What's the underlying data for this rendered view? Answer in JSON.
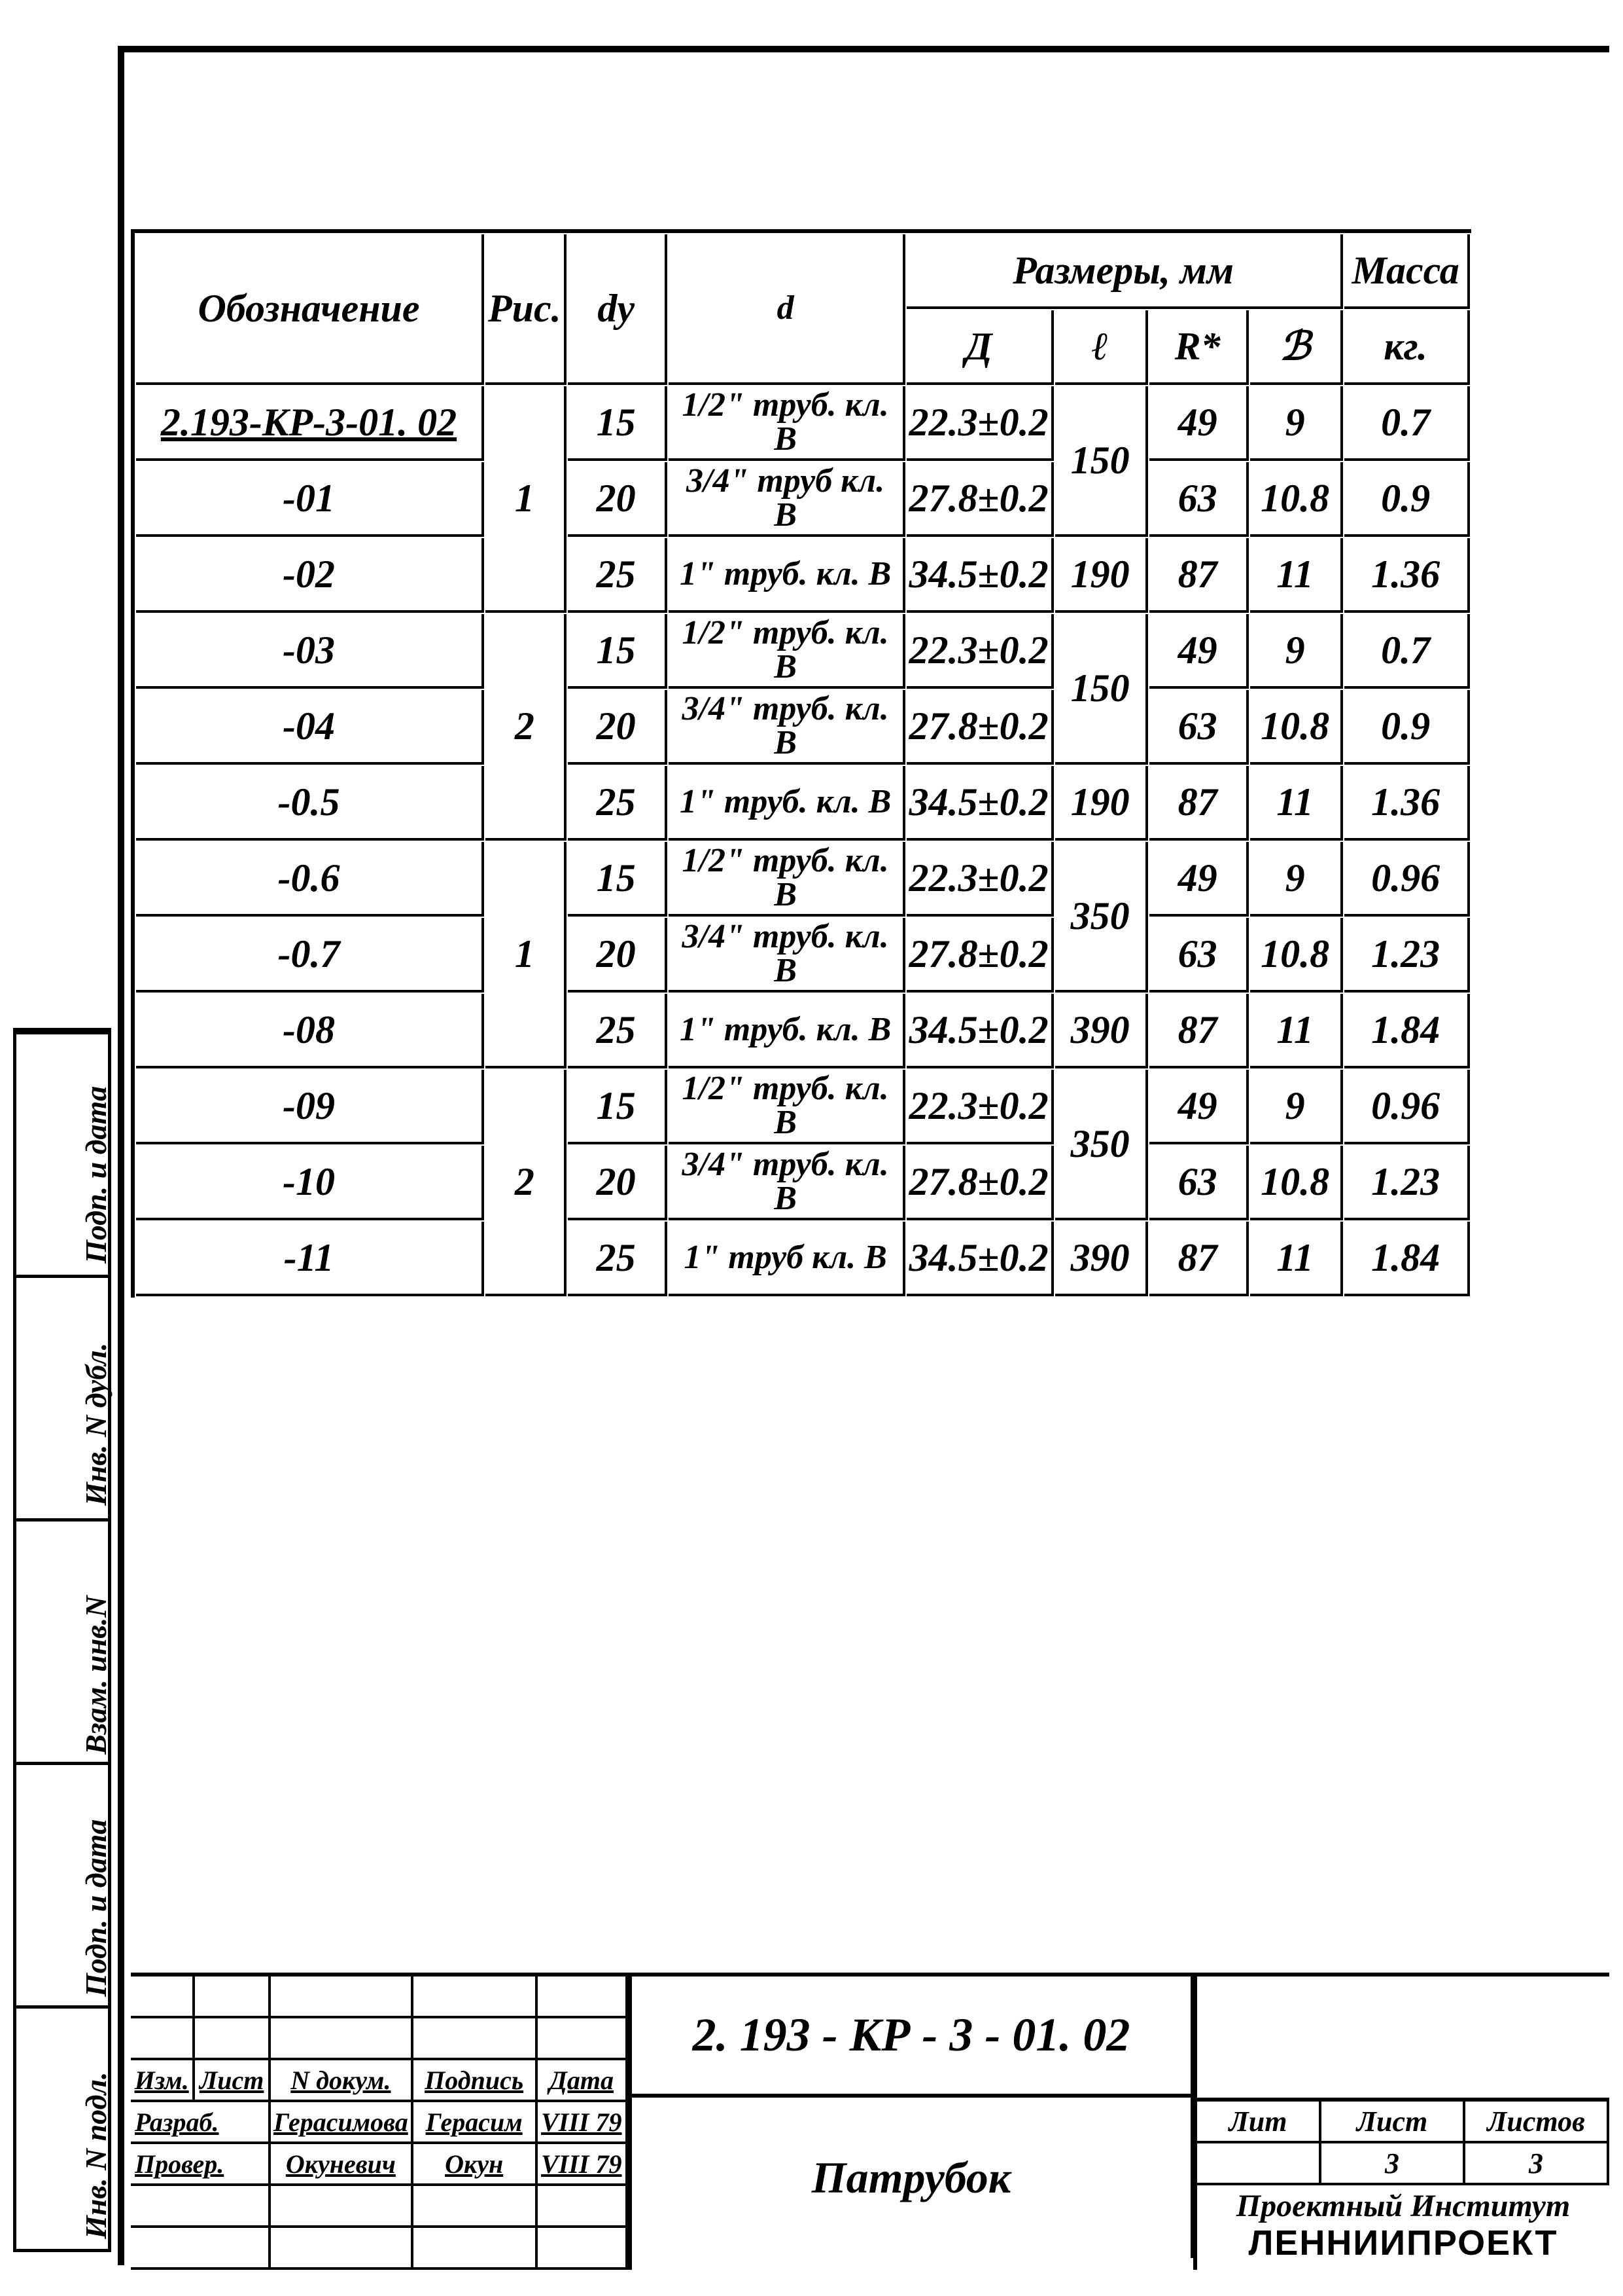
{
  "table": {
    "headers": {
      "oboz": "Обозначение",
      "ris": "Рис.",
      "dy": "dу",
      "d": "d",
      "razmery": "Размеры,   мм",
      "D": "Д",
      "l": "ℓ",
      "R": "R*",
      "b": "ℬ",
      "massa": "Масса",
      "massa_unit": "кг."
    },
    "rows": [
      {
        "oboz": "2.193-КР-3-01. 02",
        "ris": "",
        "dy": "15",
        "d": "1/2\" труб. кл. В",
        "D": "22.3±0.2",
        "l": "",
        "R": "49",
        "b": "9",
        "m": "0.7"
      },
      {
        "oboz": "-01",
        "ris": "1",
        "dy": "20",
        "d": "3/4\" труб кл. В",
        "D": "27.8±0.2",
        "l": "150",
        "R": "63",
        "b": "10.8",
        "m": "0.9"
      },
      {
        "oboz": "-02",
        "ris": "",
        "dy": "25",
        "d": "1\" труб. кл. В",
        "D": "34.5±0.2",
        "l": "190",
        "R": "87",
        "b": "11",
        "m": "1.36"
      },
      {
        "oboz": "-03",
        "ris": "",
        "dy": "15",
        "d": "1/2\" труб. кл. В",
        "D": "22.3±0.2",
        "l": "",
        "R": "49",
        "b": "9",
        "m": "0.7"
      },
      {
        "oboz": "-04",
        "ris": "2",
        "dy": "20",
        "d": "3/4\" труб. кл. В",
        "D": "27.8±0.2",
        "l": "150",
        "R": "63",
        "b": "10.8",
        "m": "0.9"
      },
      {
        "oboz": "-0.5",
        "ris": "",
        "dy": "25",
        "d": "1\" труб. кл. В",
        "D": "34.5±0.2",
        "l": "190",
        "R": "87",
        "b": "11",
        "m": "1.36"
      },
      {
        "oboz": "-0.6",
        "ris": "",
        "dy": "15",
        "d": "1/2\" труб. кл. В",
        "D": "22.3±0.2",
        "l": "",
        "R": "49",
        "b": "9",
        "m": "0.96"
      },
      {
        "oboz": "-0.7",
        "ris": "1",
        "dy": "20",
        "d": "3/4\" труб. кл. В",
        "D": "27.8±0.2",
        "l": "350",
        "R": "63",
        "b": "10.8",
        "m": "1.23"
      },
      {
        "oboz": "-08",
        "ris": "",
        "dy": "25",
        "d": "1\" труб. кл. В",
        "D": "34.5±0.2",
        "l": "390",
        "R": "87",
        "b": "11",
        "m": "1.84"
      },
      {
        "oboz": "-09",
        "ris": "",
        "dy": "15",
        "d": "1/2\" труб. кл. В",
        "D": "22.3±0.2",
        "l": "",
        "R": "49",
        "b": "9",
        "m": "0.96"
      },
      {
        "oboz": "-10",
        "ris": "2",
        "dy": "20",
        "d": "3/4\" труб. кл. В",
        "D": "27.8±0.2",
        "l": "350",
        "R": "63",
        "b": "10.8",
        "m": "1.23"
      },
      {
        "oboz": "-11",
        "ris": "",
        "dy": "25",
        "d": "1\" труб кл. В",
        "D": "34.5±0.2",
        "l": "390",
        "R": "87",
        "b": "11",
        "m": "1.84"
      }
    ],
    "ris_merge": [
      {
        "start": 0,
        "span": 3,
        "val": "1"
      },
      {
        "start": 3,
        "span": 3,
        "val": "2"
      },
      {
        "start": 6,
        "span": 3,
        "val": "1"
      },
      {
        "start": 9,
        "span": 3,
        "val": "2"
      }
    ],
    "l_merge": [
      {
        "start": 0,
        "span": 2,
        "val": "150"
      },
      {
        "start": 3,
        "span": 2,
        "val": "150"
      },
      {
        "start": 6,
        "span": 2,
        "val": "350"
      },
      {
        "start": 9,
        "span": 2,
        "val": "350"
      }
    ]
  },
  "side_labels": [
    "Инв. N дубл.",
    "Подп. и дата",
    "Взам. инв.N",
    "Инв. N подл.",
    "Подп. и дата"
  ],
  "title_block": {
    "rev_headers": [
      "Изм.",
      "Лист",
      "N докум.",
      "Подпись",
      "Дата"
    ],
    "rev_rows": [
      {
        "role": "Разраб.",
        "name": "Герасимова",
        "sign": "Герасим",
        "date": "VIII 79"
      },
      {
        "role": "Провер.",
        "name": "Окуневич",
        "sign": "Окун",
        "date": "VIII 79"
      },
      {
        "role": "",
        "name": "",
        "sign": "",
        "date": ""
      },
      {
        "role": "",
        "name": "",
        "sign": "",
        "date": ""
      }
    ],
    "doc_number": "2. 193 - КР - 3 - 01. 02",
    "doc_title": "Патрубок",
    "lit": "Лит",
    "list": "Лист",
    "listov": "Листов",
    "list_val": "3",
    "listov_val": "3",
    "org_line1": "Проектный Институт",
    "org_line2": "ЛЕННИИПРОЕКТ"
  }
}
